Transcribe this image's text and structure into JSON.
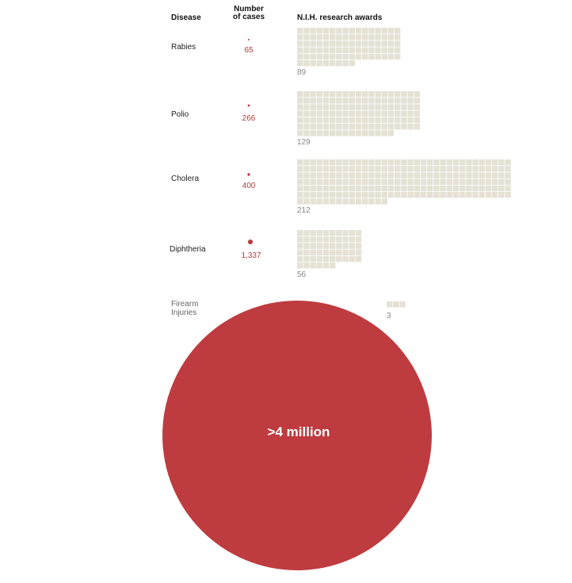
{
  "headers": {
    "disease": "Disease",
    "cases_line1": "Number",
    "cases_line2": "of cases",
    "awards": "N.I.H. research awards"
  },
  "colors": {
    "case_dot": "#be3c3f",
    "award_square": "#e5e1d4",
    "award_square_border": "#ffffff",
    "case_text": "#b8393b",
    "award_text": "#888888"
  },
  "chart_data": {
    "type": "table",
    "columns": [
      "Disease",
      "Number of cases",
      "N.I.H. research awards"
    ],
    "rows": [
      {
        "disease": "Rabies",
        "cases": 65,
        "cases_label": "65",
        "awards": 89,
        "awards_label": "89"
      },
      {
        "disease": "Polio",
        "cases": 266,
        "cases_label": "266",
        "awards": 129,
        "awards_label": "129"
      },
      {
        "disease": "Cholera",
        "cases": 400,
        "cases_label": "400",
        "awards": 212,
        "awards_label": "212"
      },
      {
        "disease": "Diphtheria",
        "cases": 1337,
        "cases_label": "1,337",
        "awards": 56,
        "awards_label": "56"
      },
      {
        "disease_lines": [
          "Firearm",
          "Injuries"
        ],
        "cases": 4000000,
        "cases_label": ">4 million",
        "awards": 3,
        "awards_label": "3"
      }
    ]
  }
}
